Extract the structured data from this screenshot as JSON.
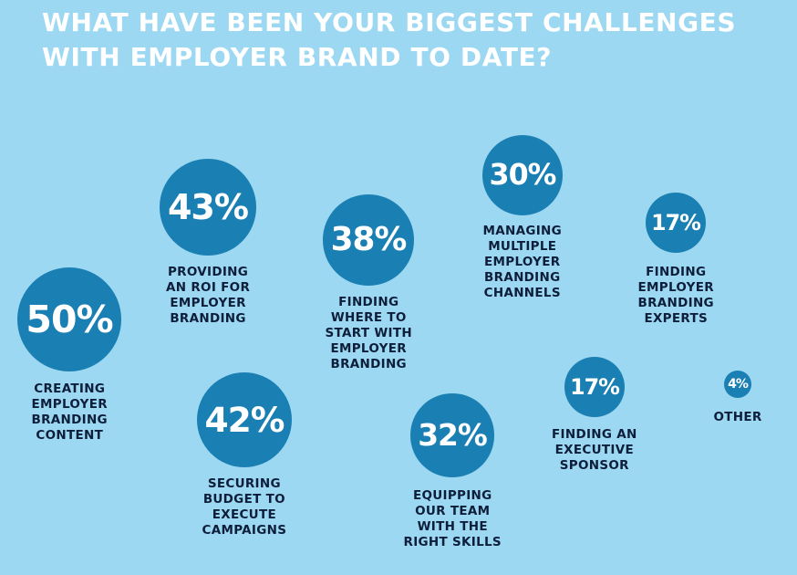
{
  "title": {
    "line1": "WHAT HAVE BEEN YOUR BIGGEST CHALLENGES",
    "line2": "WITH EMPLOYER BRAND TO DATE?"
  },
  "colors": {
    "background": "#9cd8f2",
    "bubble": "#1a7fb3",
    "title": "#ffffff",
    "label": "#0d1e3a"
  },
  "chart_data": {
    "type": "bubble",
    "unit": "%",
    "categories": [
      "CREATING EMPLOYER BRANDING CONTENT",
      "PROVIDING AN ROI FOR EMPLOYER BRANDING",
      "SECURING BUDGET TO EXECUTE CAMPAIGNS",
      "FINDING WHERE TO START WITH EMPLOYER BRANDING",
      "EQUIPPING OUR TEAM WITH THE RIGHT SKILLS",
      "MANAGING MULTIPLE EMPLOYER BRANDING CHANNELS",
      "FINDING EMPLOYER BRANDING EXPERTS",
      "FINDING AN EXECUTIVE SPONSOR",
      "OTHER"
    ],
    "values": [
      50,
      43,
      42,
      38,
      32,
      30,
      17,
      17,
      4
    ],
    "value_labels": [
      "50%",
      "43%",
      "42%",
      "38%",
      "32%",
      "30%",
      "17%",
      "17%",
      "4%"
    ],
    "label_lines": [
      [
        "CREATING",
        "EMPLOYER",
        "BRANDING",
        "CONTENT"
      ],
      [
        "PROVIDING",
        "AN ROI FOR",
        "EMPLOYER",
        "BRANDING"
      ],
      [
        "SECURING",
        "BUDGET TO",
        "EXECUTE",
        "CAMPAIGNS"
      ],
      [
        "FINDING",
        "WHERE TO",
        "START WITH",
        "EMPLOYER",
        "BRANDING"
      ],
      [
        "EQUIPPING",
        "OUR TEAM",
        "WITH THE",
        "RIGHT SKILLS"
      ],
      [
        "MANAGING",
        "MULTIPLE",
        "EMPLOYER",
        "BRANDING",
        "CHANNELS"
      ],
      [
        "FINDING",
        "EMPLOYER",
        "BRANDING",
        "EXPERTS"
      ],
      [
        "FINDING AN",
        "EXECUTIVE",
        "SPONSOR"
      ],
      [
        "OTHER"
      ]
    ]
  }
}
